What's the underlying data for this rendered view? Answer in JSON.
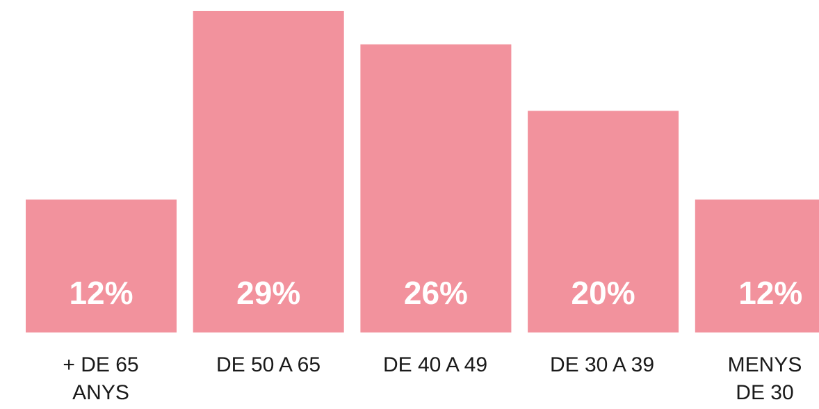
{
  "chart_data": {
    "type": "bar",
    "categories": [
      "+ DE 65 ANYS",
      "DE 50 A 65",
      "DE 40 A 49",
      "DE 30 A 39",
      "MENYS DE 30"
    ],
    "values": [
      12,
      29,
      26,
      20,
      12
    ],
    "value_labels": [
      "12%",
      "29%",
      "26%",
      "20%",
      "12%"
    ],
    "color": "#f2929d",
    "ylim": [
      0,
      30
    ]
  }
}
